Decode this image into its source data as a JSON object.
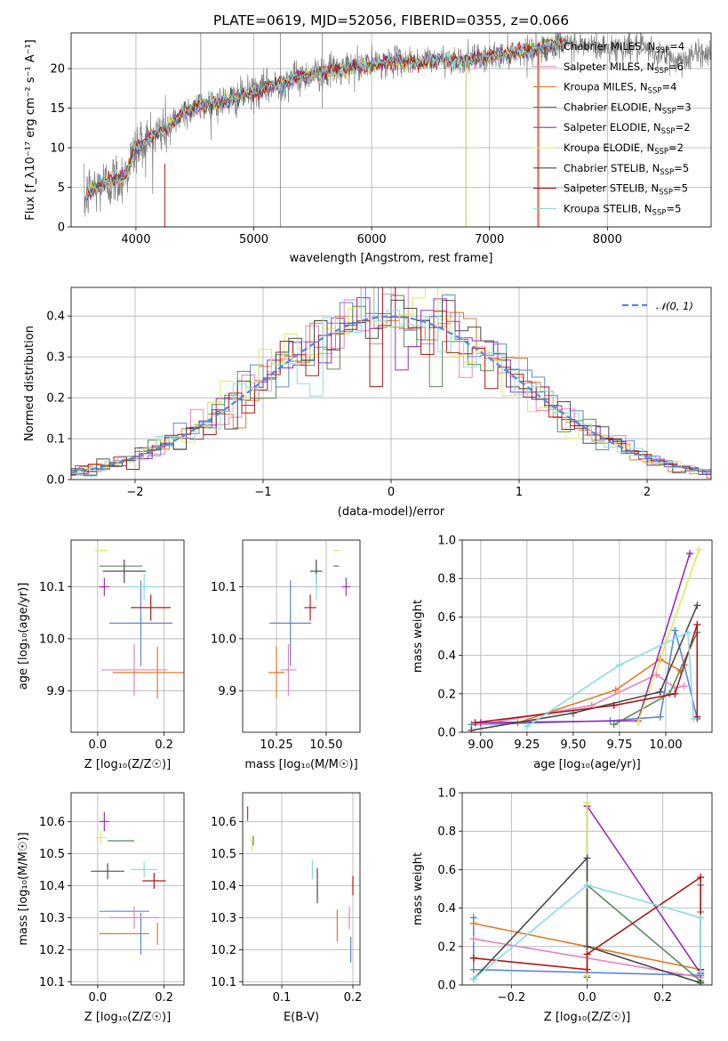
{
  "chart_data": [
    {
      "id": "spectrum",
      "type": "line",
      "title": "PLATE=0619, MJD=52056, FIBERID=0355, z=0.066",
      "xlabel": "wavelength [Angstrom, rest frame]",
      "ylabel": "Flux [f_λ10⁻¹⁷ erg cm⁻² s⁻¹ A⁻¹]",
      "xlim": [
        3450,
        8880
      ],
      "ylim": [
        0,
        24.5
      ],
      "xticks": [
        4000,
        5000,
        6000,
        7000,
        8000
      ],
      "yticks": [
        0,
        5,
        10,
        15,
        20
      ],
      "legend_position": "top-right",
      "spectrum_points": [
        [
          3560,
          3
        ],
        [
          3600,
          4.5
        ],
        [
          3700,
          5.2
        ],
        [
          3800,
          5.8
        ],
        [
          3900,
          6.5
        ],
        [
          3950,
          8
        ],
        [
          4000,
          10
        ],
        [
          4100,
          11
        ],
        [
          4200,
          12
        ],
        [
          4300,
          13
        ],
        [
          4400,
          14.5
        ],
        [
          4600,
          15.5
        ],
        [
          4800,
          16
        ],
        [
          5000,
          17
        ],
        [
          5200,
          18
        ],
        [
          5400,
          19
        ],
        [
          5600,
          19.5
        ],
        [
          5800,
          20
        ],
        [
          6000,
          20.5
        ],
        [
          6200,
          21
        ],
        [
          6400,
          20.8
        ],
        [
          6600,
          21.2
        ],
        [
          6800,
          21
        ],
        [
          7000,
          21.5
        ],
        [
          7200,
          22
        ],
        [
          7400,
          22.5
        ],
        [
          7600,
          23
        ],
        [
          7800,
          23
        ],
        [
          8000,
          22.5
        ],
        [
          8200,
          22.8
        ],
        [
          8400,
          22
        ],
        [
          8600,
          21
        ],
        [
          8800,
          22
        ]
      ],
      "models": [
        {
          "name": "Chabrier MILES, N_SSP=4",
          "label": "Chabrier MILES, N",
          "n": "4",
          "color": "#5b86d8"
        },
        {
          "name": "Salpeter MILES, N_SSP=6",
          "label": "Salpeter MILES, N",
          "n": "6",
          "color": "#e882c2"
        },
        {
          "name": "Kroupa MILES, N_SSP=4",
          "label": "Kroupa MILES, N",
          "n": "4",
          "color": "#e07b28"
        },
        {
          "name": "Chabrier ELODIE, N_SSP=3",
          "label": "Chabrier ELODIE, N",
          "n": "3",
          "color": "#5a8a5a"
        },
        {
          "name": "Salpeter ELODIE, N_SSP=2",
          "label": "Salpeter ELODIE, N",
          "n": "2",
          "color": "#9a2fb8"
        },
        {
          "name": "Kroupa ELODIE, N_SSP=2",
          "label": "Kroupa ELODIE, N",
          "n": "2",
          "color": "#d8ec58"
        },
        {
          "name": "Chabrier STELIB, N_SSP=5",
          "label": "Chabrier STELIB, N",
          "n": "5",
          "color": "#4a4a4a"
        },
        {
          "name": "Salpeter STELIB, N_SSP=5",
          "label": "Salpeter STELIB, N",
          "n": "5",
          "color": "#b01818"
        },
        {
          "name": "Kroupa STELIB, N_SSP=5",
          "label": "Kroupa STELIB, N",
          "n": "5",
          "color": "#88dde0"
        }
      ],
      "legend_subscript": "SSP"
    },
    {
      "id": "residual-hist",
      "type": "histogram",
      "xlabel": "(data-model)/error",
      "ylabel": "Normed distribution",
      "xlim": [
        -2.5,
        2.5
      ],
      "ylim": [
        0,
        0.47
      ],
      "xticks": [
        -2,
        -1,
        0,
        1,
        2
      ],
      "yticks": [
        0.0,
        0.1,
        0.2,
        0.3,
        0.4
      ],
      "reference_label": "𝒩(0, 1)",
      "reference_color": "#5b86d8",
      "legend_position": "top-right"
    },
    {
      "id": "age-vs-Z",
      "type": "errorbar",
      "xlabel": "Z [log₁₀(Z/Z☉)]",
      "ylabel": "age  [log₁₀(age/yr)]",
      "xlim": [
        -0.08,
        0.26
      ],
      "ylim": [
        9.82,
        10.19
      ],
      "xticks": [
        0.0,
        0.2
      ],
      "yticks": [
        9.9,
        10.0,
        10.1
      ],
      "points": [
        {
          "x": 0.13,
          "y": 10.03,
          "xerr": 0.19,
          "yerr": 0.165,
          "color": "#5b86d8"
        },
        {
          "x": 0.11,
          "y": 9.94,
          "xerr": 0.2,
          "yerr": 0.1,
          "color": "#e882c2"
        },
        {
          "x": 0.18,
          "y": 9.935,
          "xerr": 0.27,
          "yerr": 0.1,
          "color": "#e07b28"
        },
        {
          "x": 0.07,
          "y": 10.14,
          "xerr": 0.13,
          "yerr": 0.0,
          "color": "#5a8a5a"
        },
        {
          "x": 0.02,
          "y": 10.1,
          "xerr": 0.03,
          "yerr": 0.035,
          "color": "#9a2fb8"
        },
        {
          "x": 0.01,
          "y": 10.17,
          "xerr": 0.04,
          "yerr": 0.0,
          "color": "#d8ec58"
        },
        {
          "x": 0.08,
          "y": 10.13,
          "xerr": 0.13,
          "yerr": 0.045,
          "color": "#4a4a4a"
        },
        {
          "x": 0.16,
          "y": 10.06,
          "xerr": 0.12,
          "yerr": 0.05,
          "color": "#b01818"
        },
        {
          "x": 0.14,
          "y": 10.1,
          "xerr": 0.1,
          "yerr": 0.05,
          "color": "#88dde0"
        }
      ]
    },
    {
      "id": "age-vs-mass",
      "type": "errorbar",
      "xlabel": "mass [log₁₀(M/M☉)]",
      "ylabel": "",
      "xlim": [
        10.08,
        10.67
      ],
      "ylim": [
        9.82,
        10.19
      ],
      "xticks": [
        10.25,
        10.5
      ],
      "yticks": [
        9.9,
        10.0,
        10.1
      ],
      "points": [
        {
          "x": 10.32,
          "y": 10.03,
          "xerr": 0.21,
          "yerr": 0.165,
          "color": "#5b86d8"
        },
        {
          "x": 10.31,
          "y": 9.94,
          "xerr": 0.08,
          "yerr": 0.1,
          "color": "#e882c2"
        },
        {
          "x": 10.25,
          "y": 9.935,
          "xerr": 0.08,
          "yerr": 0.1,
          "color": "#e07b28"
        },
        {
          "x": 10.55,
          "y": 10.14,
          "xerr": 0.03,
          "yerr": 0.0,
          "color": "#5a8a5a"
        },
        {
          "x": 10.6,
          "y": 10.1,
          "xerr": 0.04,
          "yerr": 0.035,
          "color": "#9a2fb8"
        },
        {
          "x": 10.55,
          "y": 10.17,
          "xerr": 0.03,
          "yerr": 0.0,
          "color": "#d8ec58"
        },
        {
          "x": 10.45,
          "y": 10.13,
          "xerr": 0.06,
          "yerr": 0.045,
          "color": "#4a4a4a"
        },
        {
          "x": 10.42,
          "y": 10.06,
          "xerr": 0.06,
          "yerr": 0.05,
          "color": "#b01818"
        },
        {
          "x": 10.45,
          "y": 10.1,
          "xerr": 0.01,
          "yerr": 0.05,
          "color": "#88dde0"
        }
      ]
    },
    {
      "id": "massweight-vs-age",
      "type": "line",
      "xlabel": "age  [log₁₀(age/yr)]",
      "ylabel": "mass weight",
      "xlim": [
        8.9,
        10.25
      ],
      "ylim": [
        0,
        1.0
      ],
      "xticks": [
        9.0,
        9.25,
        9.5,
        9.75,
        10.0
      ],
      "yticks": [
        0.0,
        0.2,
        0.4,
        0.6,
        0.8,
        1.0
      ],
      "series": [
        {
          "color": "#5b86d8",
          "x": [
            8.95,
            9.7,
            9.97,
            10.05,
            10.1,
            10.17
          ],
          "y": [
            0.04,
            0.06,
            0.08,
            0.53,
            0.35,
            0.07
          ]
        },
        {
          "color": "#e882c2",
          "x": [
            9.0,
            9.6,
            9.95,
            10.05,
            10.1
          ],
          "y": [
            0.04,
            0.14,
            0.3,
            0.23,
            0.24
          ]
        },
        {
          "color": "#e07b28",
          "x": [
            9.2,
            9.73,
            9.97,
            10.08
          ],
          "y": [
            0.05,
            0.22,
            0.38,
            0.32
          ]
        },
        {
          "color": "#5a8a5a",
          "x": [
            9.72,
            10.02,
            10.17
          ],
          "y": [
            0.04,
            0.2,
            0.52
          ]
        },
        {
          "color": "#9a2fb8",
          "x": [
            9.0,
            9.85,
            10.13
          ],
          "y": [
            0.05,
            0.06,
            0.93
          ]
        },
        {
          "color": "#d8ec58",
          "x": [
            9.85,
            10.18
          ],
          "y": [
            0.05,
            0.95
          ]
        },
        {
          "color": "#4a4a4a",
          "x": [
            8.95,
            9.5,
            9.97,
            10.17
          ],
          "y": [
            0.01,
            0.1,
            0.21,
            0.66
          ]
        },
        {
          "color": "#b01818",
          "x": [
            8.97,
            9.72,
            10.05,
            10.17,
            10.17
          ],
          "y": [
            0.05,
            0.14,
            0.2,
            0.56,
            0.08
          ]
        },
        {
          "color": "#88dde0",
          "x": [
            9.25,
            9.75,
            10.12,
            10.15
          ],
          "y": [
            0.03,
            0.35,
            0.52,
            0.07
          ]
        }
      ]
    },
    {
      "id": "mass-vs-Z",
      "type": "errorbar",
      "xlabel": "Z [log₁₀(Z/Z☉)]",
      "ylabel": "mass [log₁₀(M/M☉)]",
      "xlim": [
        -0.08,
        0.26
      ],
      "ylim": [
        10.09,
        10.69
      ],
      "xticks": [
        0.0,
        0.2
      ],
      "yticks": [
        10.1,
        10.2,
        10.3,
        10.4,
        10.5,
        10.6
      ],
      "points": [
        {
          "x": 0.08,
          "y": 10.32,
          "xerr": 0.15,
          "yerr": 0.0,
          "color": "#5b86d8"
        },
        {
          "x": 0.13,
          "y": 10.25,
          "xerr": 0.0,
          "yerr": 0.13,
          "color": "#5b86d8"
        },
        {
          "x": 0.11,
          "y": 10.3,
          "xerr": 0.15,
          "yerr": 0.07,
          "color": "#e882c2"
        },
        {
          "x": 0.08,
          "y": 10.25,
          "xerr": 0.15,
          "yerr": 0.0,
          "color": "#e07b28"
        },
        {
          "x": 0.18,
          "y": 10.25,
          "xerr": 0.0,
          "yerr": 0.07,
          "color": "#e07b28"
        },
        {
          "x": 0.07,
          "y": 10.54,
          "xerr": 0.08,
          "yerr": 0.0,
          "color": "#5a8a5a"
        },
        {
          "x": 0.02,
          "y": 10.6,
          "xerr": 0.03,
          "yerr": 0.06,
          "color": "#9a2fb8"
        },
        {
          "x": 0.01,
          "y": 10.55,
          "xerr": 0.03,
          "yerr": 0.04,
          "color": "#d8ec58"
        },
        {
          "x": 0.03,
          "y": 10.445,
          "xerr": 0.1,
          "yerr": 0.05,
          "color": "#4a4a4a"
        },
        {
          "x": 0.17,
          "y": 10.415,
          "xerr": 0.07,
          "yerr": 0.05,
          "color": "#b01818"
        },
        {
          "x": 0.14,
          "y": 10.45,
          "xerr": 0.08,
          "yerr": 0.05,
          "color": "#88dde0"
        }
      ]
    },
    {
      "id": "mass-vs-EBV",
      "type": "errorbar",
      "xlabel": "E(B-V)",
      "ylabel": "",
      "xlim": [
        0.045,
        0.21
      ],
      "ylim": [
        10.09,
        10.69
      ],
      "xticks": [
        0.1,
        0.2
      ],
      "yticks": [
        10.1,
        10.2,
        10.3,
        10.4,
        10.5,
        10.6
      ],
      "points": [
        {
          "x": 0.197,
          "y": 10.2,
          "xerr": 0.0,
          "yerr": 0.08,
          "color": "#5b86d8"
        },
        {
          "x": 0.195,
          "y": 10.3,
          "xerr": 0.0,
          "yerr": 0.07,
          "color": "#e882c2"
        },
        {
          "x": 0.178,
          "y": 10.275,
          "xerr": 0.0,
          "yerr": 0.1,
          "color": "#e07b28"
        },
        {
          "x": 0.06,
          "y": 10.54,
          "xerr": 0.0,
          "yerr": 0.03,
          "color": "#5a8a5a"
        },
        {
          "x": 0.052,
          "y": 10.625,
          "xerr": 0.0,
          "yerr": 0.045,
          "color": "#9a2fb8"
        },
        {
          "x": 0.058,
          "y": 10.53,
          "xerr": 0.0,
          "yerr": 0.05,
          "color": "#d8ec58"
        },
        {
          "x": 0.15,
          "y": 10.4,
          "xerr": 0.0,
          "yerr": 0.11,
          "color": "#4a4a4a"
        },
        {
          "x": 0.2,
          "y": 10.4,
          "xerr": 0.0,
          "yerr": 0.06,
          "color": "#b01818"
        },
        {
          "x": 0.143,
          "y": 10.45,
          "xerr": 0.0,
          "yerr": 0.06,
          "color": "#88dde0"
        }
      ]
    },
    {
      "id": "massweight-vs-Z",
      "type": "line",
      "xlabel": "Z [log₁₀(Z/Z☉)]",
      "ylabel": "mass weight",
      "xlim": [
        -0.33,
        0.33
      ],
      "ylim": [
        0,
        1.0
      ],
      "xticks": [
        -0.2,
        0.0,
        0.2
      ],
      "yticks": [
        0.0,
        0.2,
        0.4,
        0.6,
        0.8,
        1.0
      ],
      "series": [
        {
          "color": "#5b86d8",
          "x": [
            -0.3,
            -0.3,
            0.3,
            0.3
          ],
          "y": [
            0.35,
            0.08,
            0.05,
            0.52
          ]
        },
        {
          "color": "#e882c2",
          "x": [
            -0.3,
            0.3
          ],
          "y": [
            0.24,
            0.04
          ]
        },
        {
          "color": "#e07b28",
          "x": [
            -0.3,
            0.3,
            0.3
          ],
          "y": [
            0.32,
            0.08,
            0.38
          ]
        },
        {
          "color": "#5a8a5a",
          "x": [
            0.0,
            0.0,
            0.3
          ],
          "y": [
            0.04,
            0.52,
            0.02
          ]
        },
        {
          "color": "#9a2fb8",
          "x": [
            0.0,
            0.0,
            0.3
          ],
          "y": [
            0.05,
            0.93,
            0.06
          ]
        },
        {
          "color": "#d8ec58",
          "x": [
            0.0,
            0.0
          ],
          "y": [
            0.05,
            0.95
          ]
        },
        {
          "color": "#4a4a4a",
          "x": [
            -0.3,
            0.0,
            0.0,
            0.3
          ],
          "y": [
            0.03,
            0.66,
            0.2,
            0.01
          ]
        },
        {
          "color": "#b01818",
          "x": [
            -0.3,
            0.0,
            0.0,
            0.3,
            0.3
          ],
          "y": [
            0.14,
            0.08,
            0.16,
            0.56,
            0.08
          ]
        },
        {
          "color": "#88dde0",
          "x": [
            -0.3,
            0.0,
            0.3,
            0.3
          ],
          "y": [
            0.03,
            0.52,
            0.35,
            0.07
          ]
        }
      ]
    }
  ]
}
